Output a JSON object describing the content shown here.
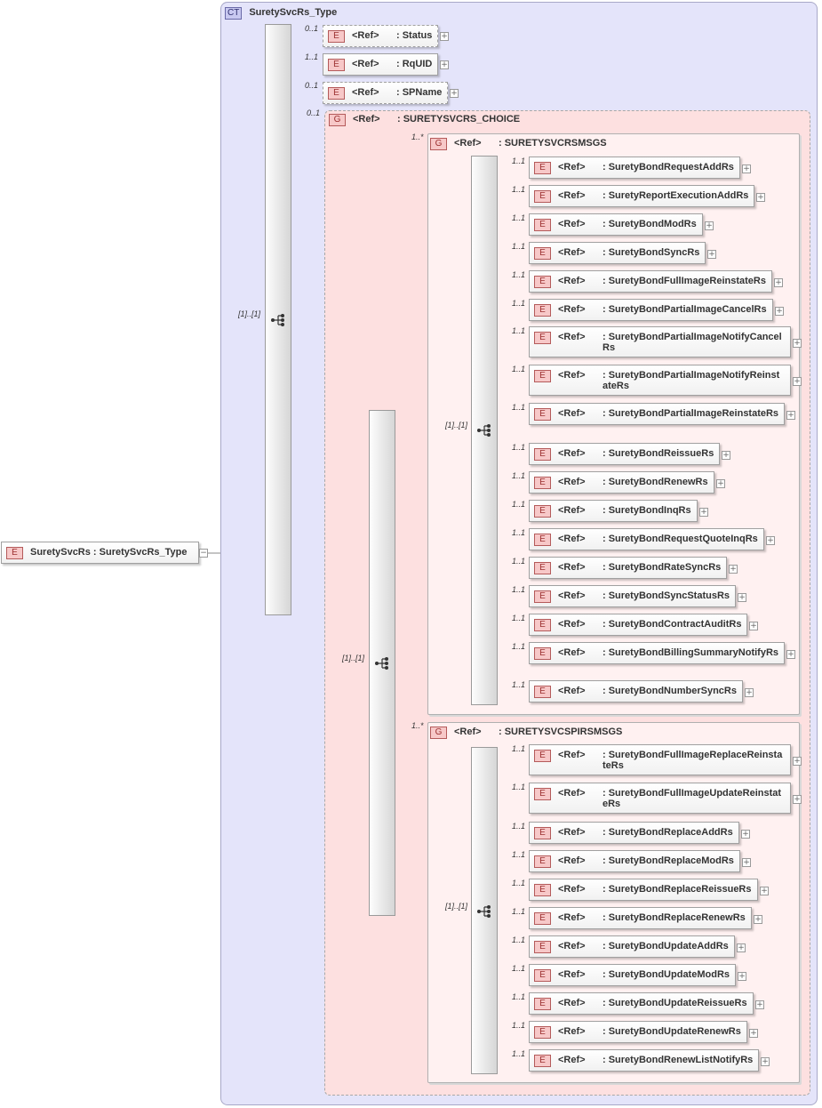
{
  "root": {
    "badge": "E",
    "label": "SuretySvcRs : SuretySvcRs_Type"
  },
  "complex_type": {
    "badge": "CT",
    "name": "SuretySvcRs_Type"
  },
  "sequence": {
    "multiplicity": "[1]..[1]"
  },
  "elements": [
    {
      "multiplicity": "0..1",
      "badge": "E",
      "ref": "<Ref>",
      "name": ": Status"
    },
    {
      "multiplicity": "1..1",
      "badge": "E",
      "ref": "<Ref>",
      "name": ": RqUID"
    },
    {
      "multiplicity": "0..1",
      "badge": "E",
      "ref": "<Ref>",
      "name": ": SPName"
    }
  ],
  "choice": {
    "multiplicity": "0..1",
    "badge": "G",
    "ref": "<Ref>",
    "name": ": SURETYSVCRS_CHOICE",
    "inner_multiplicity": "[1]..[1]",
    "groups": [
      {
        "multiplicity": "1..*",
        "badge": "G",
        "ref": "<Ref>",
        "name": ": SURETYSVCRSMSGS",
        "sequence_multiplicity": "[1]..[1]",
        "items": [
          {
            "multiplicity": "1..1",
            "badge": "E",
            "ref": "<Ref>",
            "name": ": SuretyBondRequestAddRs"
          },
          {
            "multiplicity": "1..1",
            "badge": "E",
            "ref": "<Ref>",
            "name": ": SuretyReportExecutionAddRs"
          },
          {
            "multiplicity": "1..1",
            "badge": "E",
            "ref": "<Ref>",
            "name": ": SuretyBondModRs"
          },
          {
            "multiplicity": "1..1",
            "badge": "E",
            "ref": "<Ref>",
            "name": ": SuretyBondSyncRs"
          },
          {
            "multiplicity": "1..1",
            "badge": "E",
            "ref": "<Ref>",
            "name": ": SuretyBondFullImageReinstateRs"
          },
          {
            "multiplicity": "1..1",
            "badge": "E",
            "ref": "<Ref>",
            "name": ": SuretyBondPartialImageCancelRs"
          },
          {
            "multiplicity": "1..1",
            "badge": "E",
            "ref": "<Ref>",
            "name": ": SuretyBondPartialImageNotifyCancelRs"
          },
          {
            "multiplicity": "1..1",
            "badge": "E",
            "ref": "<Ref>",
            "name": ": SuretyBondPartialImageNotifyReinstateRs"
          },
          {
            "multiplicity": "1..1",
            "badge": "E",
            "ref": "<Ref>",
            "name": ": SuretyBondPartialImageReinstateRs"
          },
          {
            "multiplicity": "1..1",
            "badge": "E",
            "ref": "<Ref>",
            "name": ": SuretyBondReissueRs"
          },
          {
            "multiplicity": "1..1",
            "badge": "E",
            "ref": "<Ref>",
            "name": ": SuretyBondRenewRs"
          },
          {
            "multiplicity": "1..1",
            "badge": "E",
            "ref": "<Ref>",
            "name": ": SuretyBondInqRs"
          },
          {
            "multiplicity": "1..1",
            "badge": "E",
            "ref": "<Ref>",
            "name": ": SuretyBondRequestQuoteInqRs"
          },
          {
            "multiplicity": "1..1",
            "badge": "E",
            "ref": "<Ref>",
            "name": ": SuretyBondRateSyncRs"
          },
          {
            "multiplicity": "1..1",
            "badge": "E",
            "ref": "<Ref>",
            "name": ": SuretyBondSyncStatusRs"
          },
          {
            "multiplicity": "1..1",
            "badge": "E",
            "ref": "<Ref>",
            "name": ": SuretyBondContractAuditRs"
          },
          {
            "multiplicity": "1..1",
            "badge": "E",
            "ref": "<Ref>",
            "name": ": SuretyBondBillingSummaryNotifyRs"
          },
          {
            "multiplicity": "1..1",
            "badge": "E",
            "ref": "<Ref>",
            "name": ": SuretyBondNumberSyncRs"
          }
        ]
      },
      {
        "multiplicity": "1..*",
        "badge": "G",
        "ref": "<Ref>",
        "name": ": SURETYSVCSPIRSMSGS",
        "sequence_multiplicity": "[1]..[1]",
        "items": [
          {
            "multiplicity": "1..1",
            "badge": "E",
            "ref": "<Ref>",
            "name": ": SuretyBondFullImageReplaceReinstateRs"
          },
          {
            "multiplicity": "1..1",
            "badge": "E",
            "ref": "<Ref>",
            "name": ": SuretyBondFullImageUpdateReinstateRs"
          },
          {
            "multiplicity": "1..1",
            "badge": "E",
            "ref": "<Ref>",
            "name": ": SuretyBondReplaceAddRs"
          },
          {
            "multiplicity": "1..1",
            "badge": "E",
            "ref": "<Ref>",
            "name": ": SuretyBondReplaceModRs"
          },
          {
            "multiplicity": "1..1",
            "badge": "E",
            "ref": "<Ref>",
            "name": ": SuretyBondReplaceReissueRs"
          },
          {
            "multiplicity": "1..1",
            "badge": "E",
            "ref": "<Ref>",
            "name": ": SuretyBondReplaceRenewRs"
          },
          {
            "multiplicity": "1..1",
            "badge": "E",
            "ref": "<Ref>",
            "name": ": SuretyBondUpdateAddRs"
          },
          {
            "multiplicity": "1..1",
            "badge": "E",
            "ref": "<Ref>",
            "name": ": SuretyBondUpdateModRs"
          },
          {
            "multiplicity": "1..1",
            "badge": "E",
            "ref": "<Ref>",
            "name": ": SuretyBondUpdateReissueRs"
          },
          {
            "multiplicity": "1..1",
            "badge": "E",
            "ref": "<Ref>",
            "name": ": SuretyBondUpdateRenewRs"
          },
          {
            "multiplicity": "1..1",
            "badge": "E",
            "ref": "<Ref>",
            "name": ": SuretyBondRenewListNotifyRs"
          }
        ]
      }
    ]
  }
}
